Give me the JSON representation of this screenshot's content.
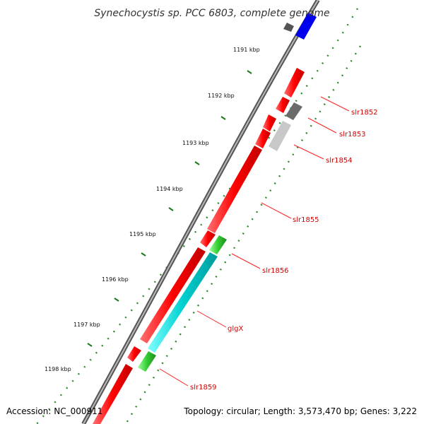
{
  "title": "Synechocystis sp. PCC 6803, complete genome",
  "footer": {
    "accession": "Accession: NC_000911",
    "topology": "Topology: circular; Length: 3,573,470 bp; Genes: 3,222"
  },
  "ticks": [
    "1191 kbp",
    "1192 kbp",
    "1193 kbp",
    "1194 kbp",
    "1195 kbp",
    "1196 kbp",
    "1197 kbp",
    "1198 kbp"
  ],
  "genes": [
    {
      "label": "slr1852",
      "color": "#ff0000"
    },
    {
      "label": "slr1853",
      "color": "#6b6b6b"
    },
    {
      "label": "slr1854",
      "color": "#c8c8c8"
    },
    {
      "label": "slr1855",
      "color": "#ff0000"
    },
    {
      "label": "slr1856",
      "color": "#33cc33"
    },
    {
      "label": "glgX",
      "color": "#00cccc"
    },
    {
      "label": "slr1859",
      "color": "#33cc33"
    }
  ],
  "colors": {
    "backbone": "#808080",
    "gc_dots": "#2e8b2e",
    "tick_marks": "#1a7a1a",
    "label_line": "#ff2020",
    "top_blue_feature": "#0000ee",
    "top_gray_feature": "#555555"
  }
}
